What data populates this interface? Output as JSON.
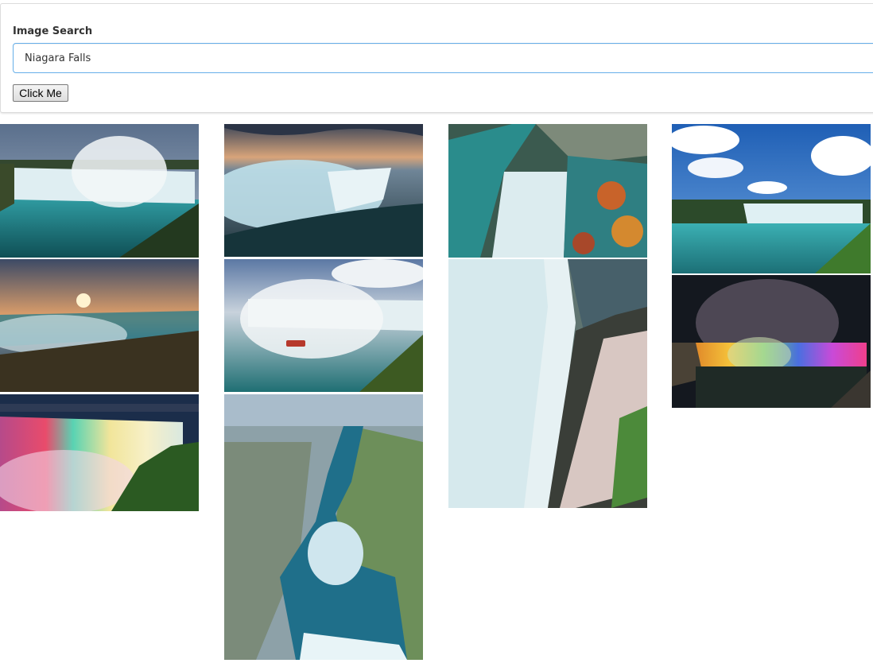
{
  "search": {
    "label": "Image Search",
    "value": "Niagara Falls",
    "button_label": "Click Me"
  },
  "results": {
    "columns": [
      [
        "horseshoe-falls-mist",
        "horseshoe-falls-sunset",
        "falls-rainbow-lights-night"
      ],
      [
        "horseshoe-falls-dusk-longexposure",
        "maid-of-the-mist-boat",
        "niagara-river-aerial"
      ],
      [
        "autumn-aerial-rapids",
        "falls-edge-observation-walkway"
      ],
      [
        "falls-blue-sky-clouds",
        "falls-illuminated-night"
      ]
    ]
  },
  "colors": {
    "input_border": "#66afe9",
    "water_teal": "#2a8c8c",
    "sky_blue": "#2f6fc4"
  }
}
